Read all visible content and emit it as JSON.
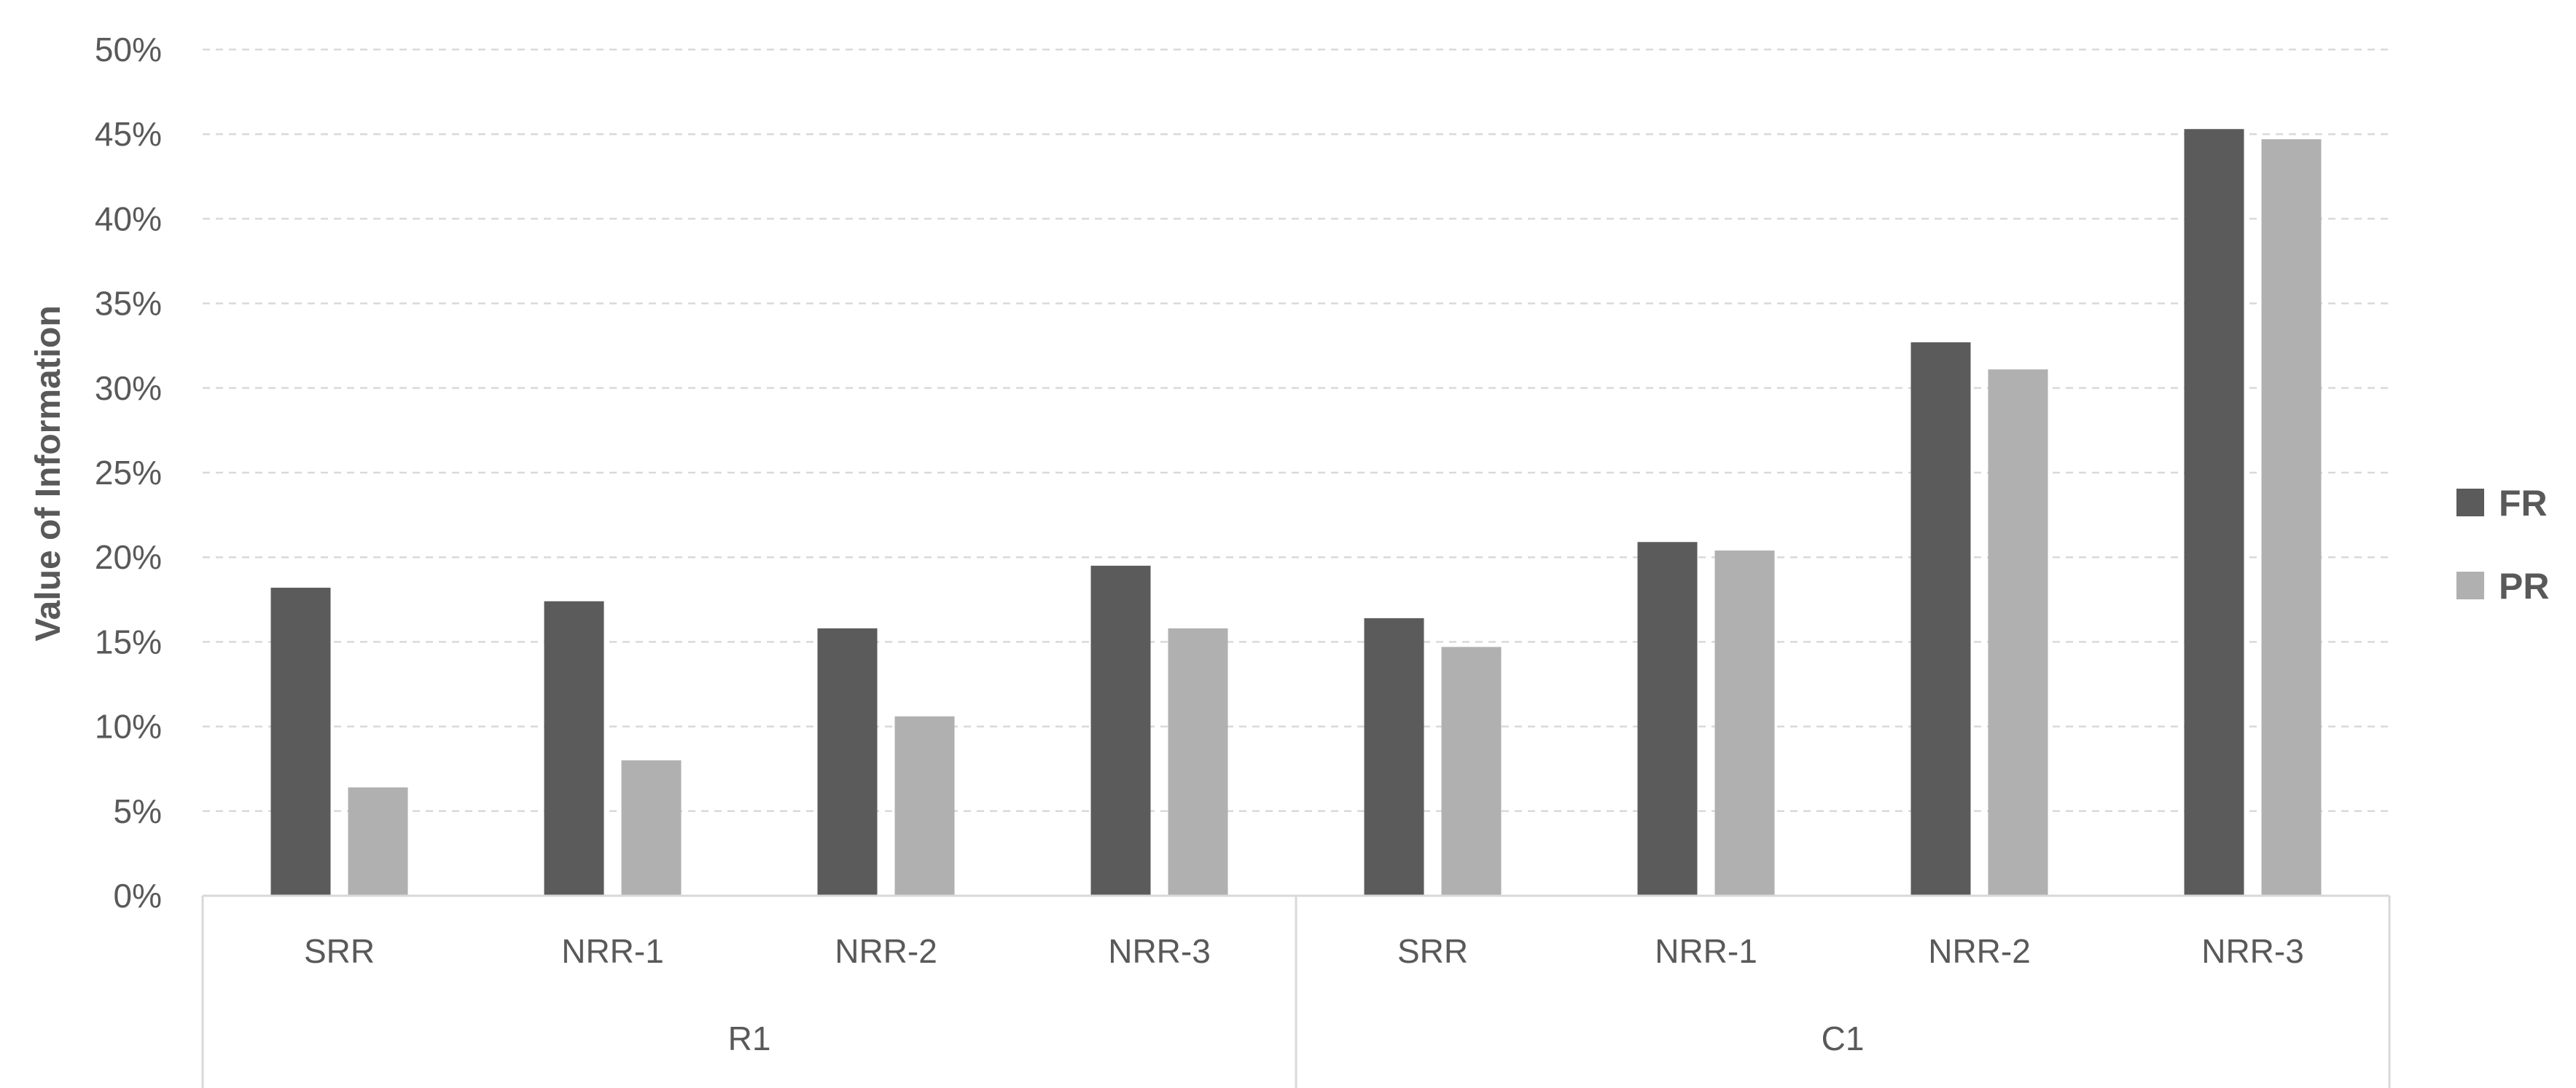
{
  "chart_data": {
    "type": "bar",
    "title": "",
    "xlabel": "",
    "ylabel": "Value of Information",
    "ylim": [
      0,
      50
    ],
    "y_tick_step": 5,
    "y_tick_format": "percent",
    "grid": "horizontal dashed",
    "legend_position": "right",
    "groups": [
      {
        "label": "R1",
        "categories": [
          "SRR",
          "NRR-1",
          "NRR-2",
          "NRR-3"
        ]
      },
      {
        "label": "C1",
        "categories": [
          "SRR",
          "NRR-1",
          "NRR-2",
          "NRR-3"
        ]
      }
    ],
    "series": [
      {
        "name": "FR",
        "color": "#5b5b5b",
        "values": [
          18.2,
          17.4,
          15.8,
          19.5,
          16.4,
          20.9,
          32.7,
          45.3
        ]
      },
      {
        "name": "PR",
        "color": "#b0b0b0",
        "values": [
          6.4,
          8.0,
          10.6,
          15.8,
          14.7,
          20.4,
          31.1,
          44.7
        ]
      }
    ]
  }
}
